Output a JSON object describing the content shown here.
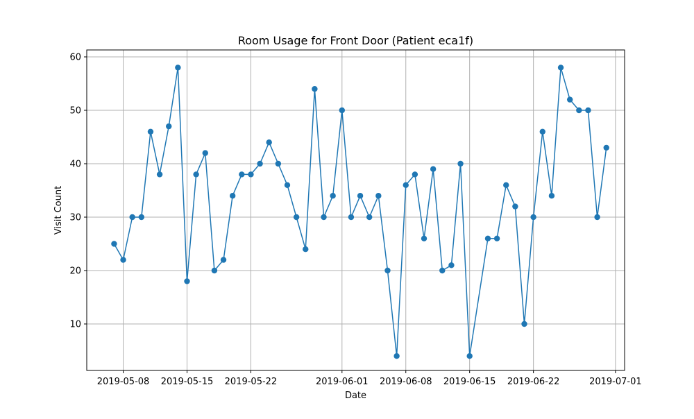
{
  "chart_data": {
    "type": "line",
    "title": "Room Usage for Front Door (Patient eca1f)",
    "xlabel": "Date",
    "ylabel": "Visit Count",
    "x_axis": "date",
    "xlim": [
      "2019-05-04",
      "2019-07-02"
    ],
    "ylim": [
      1.3,
      61.3
    ],
    "grid": true,
    "legend": "none",
    "marker": "circle",
    "series_color": "#1f77b4",
    "x_ticks": [
      "2019-05-08",
      "2019-05-15",
      "2019-05-22",
      "2019-06-01",
      "2019-06-08",
      "2019-06-15",
      "2019-06-22",
      "2019-07-01"
    ],
    "y_ticks": [
      10,
      20,
      30,
      40,
      50,
      60
    ],
    "series": [
      {
        "points": [
          [
            "2019-05-07",
            25
          ],
          [
            "2019-05-08",
            22
          ],
          [
            "2019-05-09",
            30
          ],
          [
            "2019-05-10",
            30
          ],
          [
            "2019-05-11",
            46
          ],
          [
            "2019-05-12",
            38
          ],
          [
            "2019-05-13",
            47
          ],
          [
            "2019-05-14",
            58
          ],
          [
            "2019-05-15",
            18
          ],
          [
            "2019-05-16",
            38
          ],
          [
            "2019-05-17",
            42
          ],
          [
            "2019-05-18",
            20
          ],
          [
            "2019-05-19",
            22
          ],
          [
            "2019-05-20",
            34
          ],
          [
            "2019-05-21",
            38
          ],
          [
            "2019-05-22",
            38
          ],
          [
            "2019-05-23",
            40
          ],
          [
            "2019-05-24",
            44
          ],
          [
            "2019-05-25",
            40
          ],
          [
            "2019-05-26",
            36
          ],
          [
            "2019-05-27",
            30
          ],
          [
            "2019-05-28",
            24
          ],
          [
            "2019-05-29",
            54
          ],
          [
            "2019-05-30",
            30
          ],
          [
            "2019-05-31",
            34
          ],
          [
            "2019-06-01",
            50
          ],
          [
            "2019-06-02",
            30
          ],
          [
            "2019-06-03",
            34
          ],
          [
            "2019-06-04",
            30
          ],
          [
            "2019-06-05",
            34
          ],
          [
            "2019-06-06",
            20
          ],
          [
            "2019-06-07",
            4
          ],
          [
            "2019-06-08",
            36
          ],
          [
            "2019-06-09",
            38
          ],
          [
            "2019-06-10",
            26
          ],
          [
            "2019-06-11",
            39
          ],
          [
            "2019-06-12",
            20
          ],
          [
            "2019-06-13",
            21
          ],
          [
            "2019-06-14",
            40
          ],
          [
            "2019-06-15",
            4
          ],
          [
            "2019-06-17",
            26
          ],
          [
            "2019-06-18",
            26
          ],
          [
            "2019-06-19",
            36
          ],
          [
            "2019-06-20",
            32
          ],
          [
            "2019-06-21",
            10
          ],
          [
            "2019-06-22",
            30
          ],
          [
            "2019-06-23",
            46
          ],
          [
            "2019-06-24",
            34
          ],
          [
            "2019-06-25",
            58
          ],
          [
            "2019-06-26",
            52
          ],
          [
            "2019-06-27",
            50
          ],
          [
            "2019-06-28",
            50
          ],
          [
            "2019-06-29",
            30
          ],
          [
            "2019-06-30",
            43
          ]
        ]
      }
    ]
  }
}
